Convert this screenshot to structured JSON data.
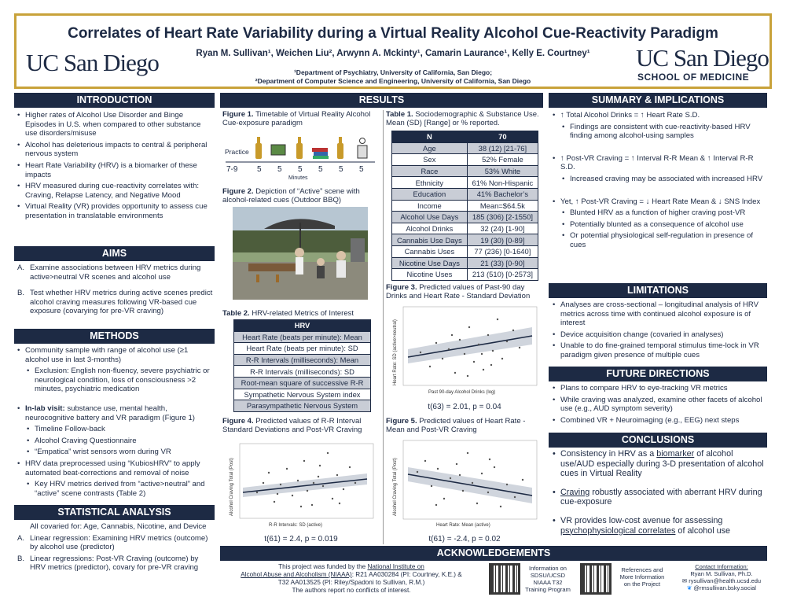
{
  "header": {
    "title": "Correlates of Heart Rate Variability during a Virtual Reality Alcohol Cue-Reactivity Paradigm",
    "authors": "Ryan M. Sullivan¹, Weichen Liu², Arwynn A. Mckinty¹, Camarin Laurance¹, Kelly E. Courtney¹",
    "dept1": "¹Department of Psychiatry, University of California, San Diego;",
    "dept2": "²Department of Computer Science and Engineering, University of California, San Diego",
    "logo_left": "UC San Diego",
    "logo_right": "UC San Diego",
    "logo_right_sub": "SCHOOL OF MEDICINE"
  },
  "intro": {
    "heading": "INTRODUCTION",
    "items": [
      "Higher rates of Alcohol Use Disorder and Binge Episodes in U.S. when compared to other substance use disorders/misuse",
      "Alcohol has deleterious impacts to central & peripheral nervous system",
      "Heart Rate Variability (HRV) is a biomarker of these impacts",
      "HRV measured during cue-reactivity correlates with: Craving, Relapse Latency, and Negative Mood",
      "Virtual Reality (VR) provides opportunity to assess cue presentation in translatable environments"
    ]
  },
  "aims": {
    "heading": "AIMS",
    "items": [
      {
        "n": "A.",
        "t": "Examine associations between HRV metrics during active>neutral VR scenes and alcohol use"
      },
      {
        "n": "B.",
        "t": "Test whether HRV metrics during active scenes predict alcohol craving measures following VR-based cue exposure (covarying for pre-VR craving)"
      }
    ]
  },
  "methods": {
    "heading": "METHODS",
    "community": "Community sample with range of alcohol use (≥1 alcohol use in last 3-months)",
    "exclusion": "Exclusion: English non-fluency, severe psychiatric or neurological condition, loss of consciousness >2 minutes, psychiatric medication",
    "inlab_label": "In-lab visit:",
    "inlab": "substance use, mental health, neurocognitive battery and VR paradigm (Figure 1)",
    "sub": [
      "Timeline Follow-back",
      "Alcohol Craving Questionnaire",
      "“Empatica” wrist sensors worn during VR"
    ],
    "hrv": "HRV data preprocessed using “KubiosHRV” to apply automated beat-corrections and removal of noise",
    "hrv_sub": "Key HRV metrics derived from “active>neutral” and “active” scene contrasts (Table 2)"
  },
  "stats": {
    "heading": "STATISTICAL ANALYSIS",
    "covar": "All covaried for: Age, Cannabis, Nicotine, and Device",
    "items": [
      {
        "n": "A.",
        "t": "Linear regression: Examining HRV metrics (outcome) by alcohol use (predictor)"
      },
      {
        "n": "B.",
        "t": "Linear regressions: Post-VR Craving (outcome) by HRV metrics (predictor), covary for pre-VR craving"
      }
    ]
  },
  "results": {
    "heading": "RESULTS",
    "fig1_label": "Figure 1.",
    "fig1_text": "Timetable of Virtual Reality Alcohol Cue-exposure paradigm",
    "fig1_practice": "Practice",
    "fig1_times": [
      "7-9",
      "5",
      "5",
      "5",
      "5",
      "5",
      "5"
    ],
    "fig1_axis": "Minutes",
    "fig2_label": "Figure 2.",
    "fig2_text": "Depiction of “Active” scene with alcohol-related cues (Outdoor BBQ)",
    "table2_label": "Table 2.",
    "table2_text": "HRV-related Metrics of Interest",
    "table2_head": "HRV",
    "table2_rows": [
      "Heart Rate (beats per minute): Mean",
      "Heart Rate (beats per minute): SD",
      "R-R Intervals (milliseconds): Mean",
      "R-R Intervals (milliseconds): SD",
      "Root-mean square of successive R-R",
      "Sympathetic Nervous System index",
      "Parasympathetic Nervous System"
    ],
    "fig4_label": "Figure 4.",
    "fig4_text": "Predicted values of R-R Interval Standard Deviations and Post-VR Craving",
    "fig4_ylabel": "Alcohol Craving Total (Post)",
    "fig4_xlabel": "R-R Intervals: SD (active)",
    "fig4_stat": "t(61) = 2.4, p = 0.019",
    "table1_label": "Table 1.",
    "table1_text": "Sociodemographic & Substance Use. Mean (SD) [Range] or % reported.",
    "table1_head": [
      "N",
      "70"
    ],
    "table1_rows": [
      [
        "Age",
        "38 (12) [21-76]"
      ],
      [
        "Sex",
        "52% Female"
      ],
      [
        "Race",
        "53% White"
      ],
      [
        "Ethnicity",
        "61% Non-Hispanic"
      ],
      [
        "Education",
        "41% Bachelor’s"
      ],
      [
        "Income",
        "Mean=$64.5k"
      ],
      [
        "Alcohol Use Days",
        "185 (306) [2-1550]"
      ],
      [
        "Alcohol Drinks",
        "32 (24) [1-90]"
      ],
      [
        "Cannabis Use Days",
        "19 (30) [0-89]"
      ],
      [
        "Cannabis Uses",
        "77 (236) [0-1640]"
      ],
      [
        "Nicotine Use Days",
        "21 (33) [0-90]"
      ],
      [
        "Nicotine Uses",
        "213 (510) [0-2573]"
      ]
    ],
    "fig3_label": "Figure 3.",
    "fig3_text": "Predicted values of Past-90 day Drinks and Heart Rate - Standard Deviation",
    "fig3_ylabel": "Heart Rate: SD (active>neutral)",
    "fig3_xlabel": "Past 90-day Alcohol Drinks (log)",
    "fig3_stat": "t(63) = 2.01, p = 0.04",
    "fig5_label": "Figure 5.",
    "fig5_text": "Predicted values of Heart Rate - Mean and Post-VR Craving",
    "fig5_ylabel": "Alcohol Craving Total (Post)",
    "fig5_xlabel": "Heart Rate: Mean (active)",
    "fig5_stat": "t(61) = -2.4, p = 0.02"
  },
  "summary": {
    "heading": "SUMMARY & IMPLICATIONS",
    "p1": "↑ Total Alcohol Drinks = ↑ Heart Rate S.D.",
    "p1s": "Findings are consistent with cue-reactivity-based HRV finding among alcohol-using samples",
    "p2": "↑ Post-VR Craving  = ↑ Interval R-R Mean & ↑ Interval R-R S.D.",
    "p2s": "Increased craving may be associated with increased HRV",
    "p3": "Yet, ↑ Post-VR Craving = ↓ Heart Rate Mean & ↓ SNS Index",
    "p3s": [
      "Blunted HRV as a function of higher craving post-VR",
      "Potentially blunted as a consequence of alcohol use",
      "Or potential physiological self-regulation in presence of cues"
    ]
  },
  "limits": {
    "heading": "LIMITATIONS",
    "items": [
      "Analyses are cross-sectional – longitudinal analysis of HRV metrics across time with continued alcohol exposure is of interest",
      "Device acquisition change (covaried in analyses)",
      "Unable to do fine-grained temporal stimulus time-lock in VR paradigm given presence of multiple cues"
    ]
  },
  "future": {
    "heading": "FUTURE DIRECTIONS",
    "items": [
      "Plans to compare HRV to eye-tracking VR metrics",
      "While craving was analyzed, examine other facets of alcohol use (e.g., AUD symptom severity)",
      "Combined VR + Neuroimaging (e.g., EEG) next steps"
    ]
  },
  "concl": {
    "heading": "CONCLUSIONS",
    "c1a": "Consistency in HRV as a ",
    "c1u": "biomarker",
    "c1b": " of alcohol use/AUD especially during 3-D presentation of alcohol cues in Virtual Reality",
    "c2u": "Craving",
    "c2b": " robustly associated with aberrant HRV during cue-exposure",
    "c3a": "VR provides low-cost avenue for assessing ",
    "c3u": "psychophysiological correlates",
    "c3b": " of alcohol use"
  },
  "ack": {
    "heading": "ACKNOWLEDGEMENTS",
    "l1a": "This project was funded by the ",
    "l1u": "National Institute on",
    "l2u": "Alcohol Abuse and Alcoholism (NIAAA)",
    "l2b": ": R21 AA030284 (PI: Courtney, K.E.) &",
    "l3": "T32 AA013525 (PI: Riley/Spadoni to Sullivan, R.M.)",
    "l4": "The authors report no conflicts of interest.",
    "qr1": [
      "Information on",
      "SDSU/UCSD",
      "NIAAA T32",
      "Training Program"
    ],
    "qr2": [
      "References and",
      "More Information",
      "on the Project"
    ],
    "contact_head": "Contact Information:",
    "contact": [
      "Ryan M. Sullivan, Ph.D.",
      "rysullivan@health.ucsd.edu",
      "@rmsullivan.bsky.social"
    ]
  }
}
